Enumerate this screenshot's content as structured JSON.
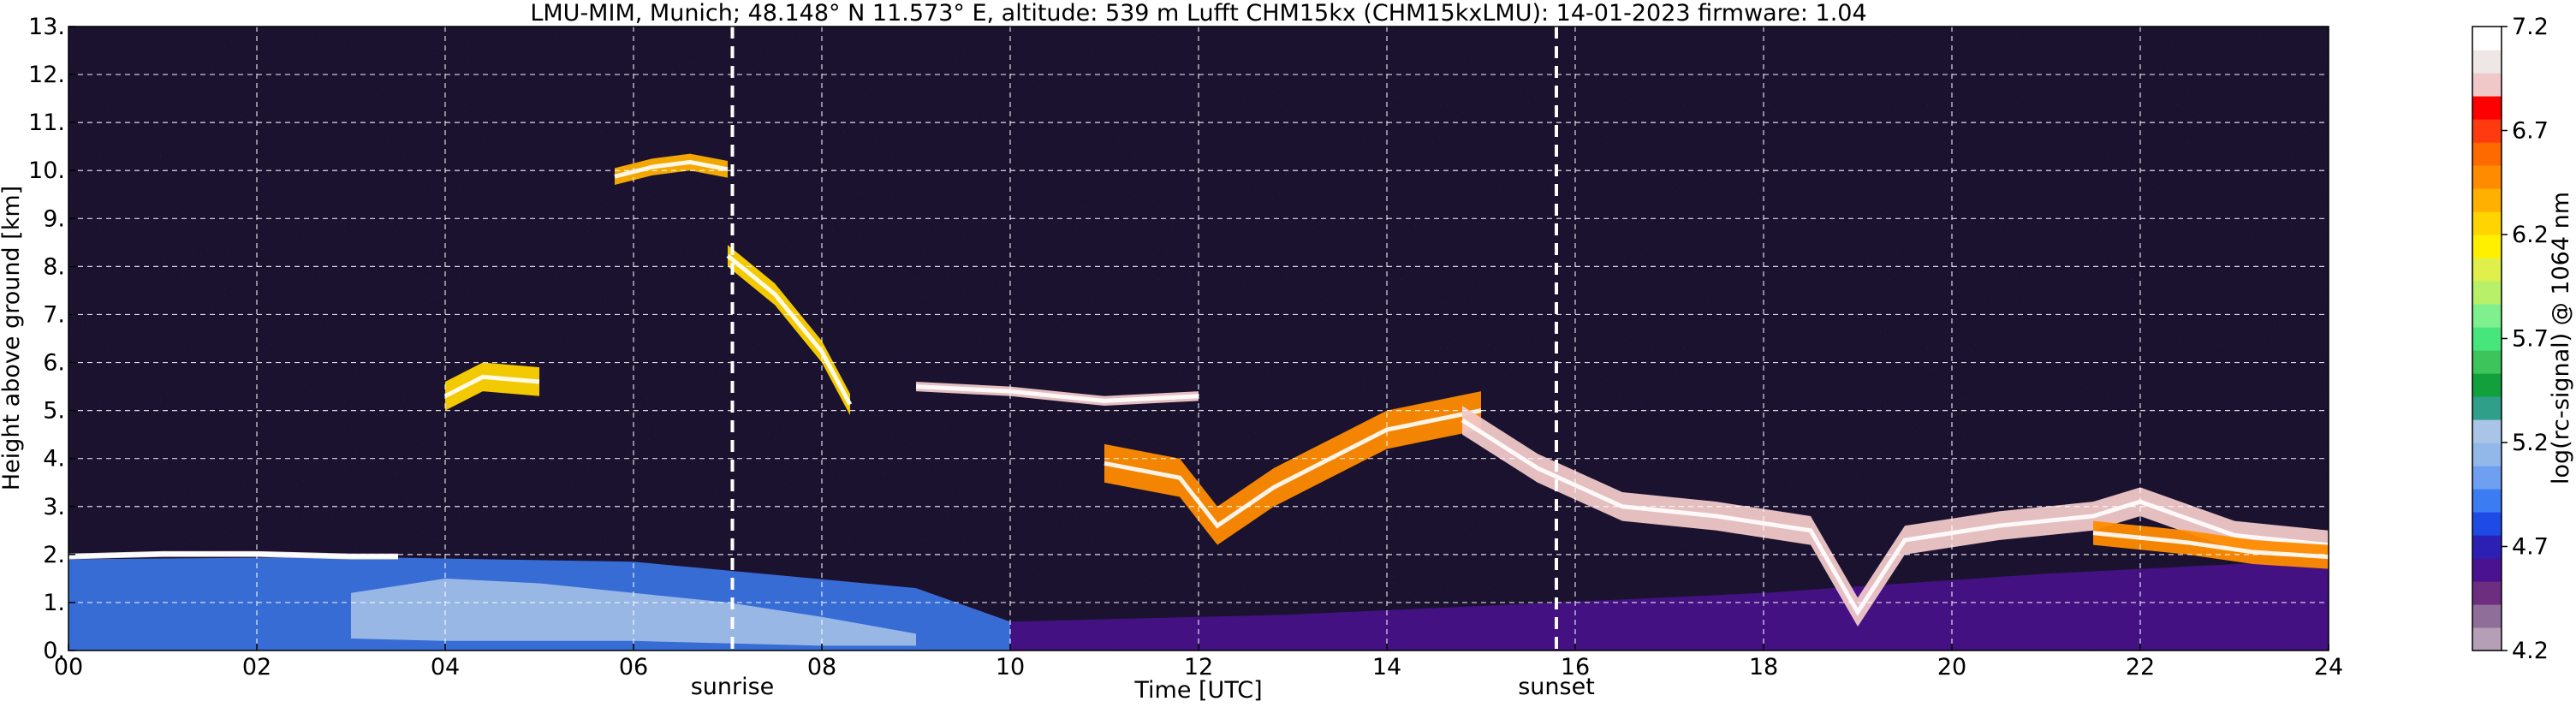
{
  "chart_data": {
    "type": "heatmap",
    "title": "LMU-MIM, Munich; 48.148° N 11.573° E, altitude: 539 m    Lufft CHM15kx (CHM15kxLMU): 14-01-2023    firmware: 1.04",
    "xlabel": "Time [UTC]",
    "ylabel": "Height above ground [km]",
    "xlim": [
      0,
      24
    ],
    "ylim": [
      0,
      13
    ],
    "x_ticks": [
      "00",
      "02",
      "04",
      "06",
      "08",
      "10",
      "12",
      "14",
      "16",
      "18",
      "20",
      "22",
      "24"
    ],
    "x_tick_values": [
      0,
      2,
      4,
      6,
      8,
      10,
      12,
      14,
      16,
      18,
      20,
      22,
      24
    ],
    "y_ticks": [
      "0.",
      "1.",
      "2.",
      "3.",
      "4.",
      "5.",
      "6.",
      "7.",
      "8.",
      "9.",
      "10.",
      "11.",
      "12.",
      "13."
    ],
    "y_tick_values": [
      0,
      1,
      2,
      3,
      4,
      5,
      6,
      7,
      8,
      9,
      10,
      11,
      12,
      13
    ],
    "grid": true,
    "background_color": "#1b1230",
    "events": [
      {
        "name": "sunrise",
        "time": 7.05
      },
      {
        "name": "sunset",
        "time": 15.8
      }
    ],
    "colorbar": {
      "label": "log(rc-signal) @ 1064 nm",
      "range": [
        4.2,
        7.2
      ],
      "ticks": [
        "4.2",
        "4.7",
        "5.2",
        "5.7",
        "6.2",
        "6.7",
        "7.2"
      ],
      "tick_values": [
        4.2,
        4.7,
        5.2,
        5.7,
        6.2,
        6.7,
        7.2
      ],
      "colors": [
        "#b49fb6",
        "#8f6f9a",
        "#6d2e82",
        "#4a1290",
        "#2b1fb4",
        "#1e4be6",
        "#3c7cf2",
        "#6f9ff0",
        "#92b8ea",
        "#a9c4e6",
        "#2f9f8a",
        "#12a03c",
        "#3dc45a",
        "#46e67c",
        "#7ef08e",
        "#b8f06a",
        "#dff04a",
        "#fff000",
        "#ffd400",
        "#ffb000",
        "#ff8c00",
        "#ff6a00",
        "#ff3a10",
        "#ff0000",
        "#f0c8c8",
        "#efe6e6",
        "#ffffff"
      ]
    },
    "features": [
      {
        "kind": "boundary_layer",
        "t": [
          0,
          3,
          6,
          9,
          10
        ],
        "bottom": [
          0,
          0,
          0,
          0,
          0
        ],
        "top": [
          1.9,
          1.95,
          1.85,
          1.3,
          0.6
        ],
        "value": 4.95
      },
      {
        "kind": "boundary_layer_core",
        "t": [
          3,
          4,
          5,
          6,
          7,
          8,
          9
        ],
        "bottom": [
          0.25,
          0.2,
          0.2,
          0.2,
          0.15,
          0.1,
          0.1
        ],
        "top": [
          1.2,
          1.5,
          1.4,
          1.2,
          1.0,
          0.7,
          0.35
        ],
        "value": 5.3
      },
      {
        "kind": "residual_layer",
        "t": [
          10,
          13,
          15.8,
          18,
          21,
          24
        ],
        "bottom": [
          0,
          0,
          0,
          0,
          0,
          0
        ],
        "top": [
          0.6,
          0.75,
          1.0,
          1.2,
          1.6,
          1.9
        ],
        "value": 4.55
      },
      {
        "kind": "cloud",
        "t": [
          0,
          1,
          2,
          3,
          3.5
        ],
        "base": [
          1.9,
          1.95,
          1.95,
          1.9,
          1.9
        ],
        "thickness": 0.12,
        "value": 7.0
      },
      {
        "kind": "cloud",
        "t": [
          5.8,
          6.2,
          6.6,
          7.0
        ],
        "base": [
          9.7,
          9.9,
          10.0,
          9.85
        ],
        "thickness": 0.35,
        "value": 6.4
      },
      {
        "kind": "cloud",
        "t": [
          7.0,
          7.5,
          8.0,
          8.3
        ],
        "base": [
          8.0,
          7.2,
          6.0,
          4.9
        ],
        "thickness": 0.45,
        "value": 6.2
      },
      {
        "kind": "cloud",
        "t": [
          9.0,
          10.0,
          11.0,
          12.0
        ],
        "base": [
          5.4,
          5.3,
          5.1,
          5.2
        ],
        "thickness": 0.2,
        "value": 6.9
      },
      {
        "kind": "cloud",
        "t": [
          11.0,
          11.8,
          12.2,
          12.8,
          14.0,
          15.0
        ],
        "base": [
          3.5,
          3.2,
          2.2,
          3.0,
          4.2,
          4.6
        ],
        "thickness": 0.8,
        "value": 6.5
      },
      {
        "kind": "cloud",
        "t": [
          14.8,
          15.6,
          16.5,
          17.5,
          18.5,
          19.0,
          19.5,
          20.5,
          21.5,
          22.0,
          23.0,
          24.0
        ],
        "base": [
          4.5,
          3.5,
          2.7,
          2.5,
          2.2,
          0.5,
          2.0,
          2.3,
          2.5,
          2.8,
          2.1,
          1.9
        ],
        "thickness": 0.6,
        "value": 6.9
      },
      {
        "kind": "cloud",
        "t": [
          21.5,
          22.5,
          23.2,
          24.0
        ],
        "base": [
          2.2,
          2.0,
          1.8,
          1.7
        ],
        "thickness": 0.5,
        "value": 6.5
      },
      {
        "kind": "cloud",
        "t": [
          4.0,
          4.4,
          5.0
        ],
        "base": [
          5.0,
          5.4,
          5.3
        ],
        "thickness": 0.6,
        "value": 6.3
      }
    ]
  }
}
